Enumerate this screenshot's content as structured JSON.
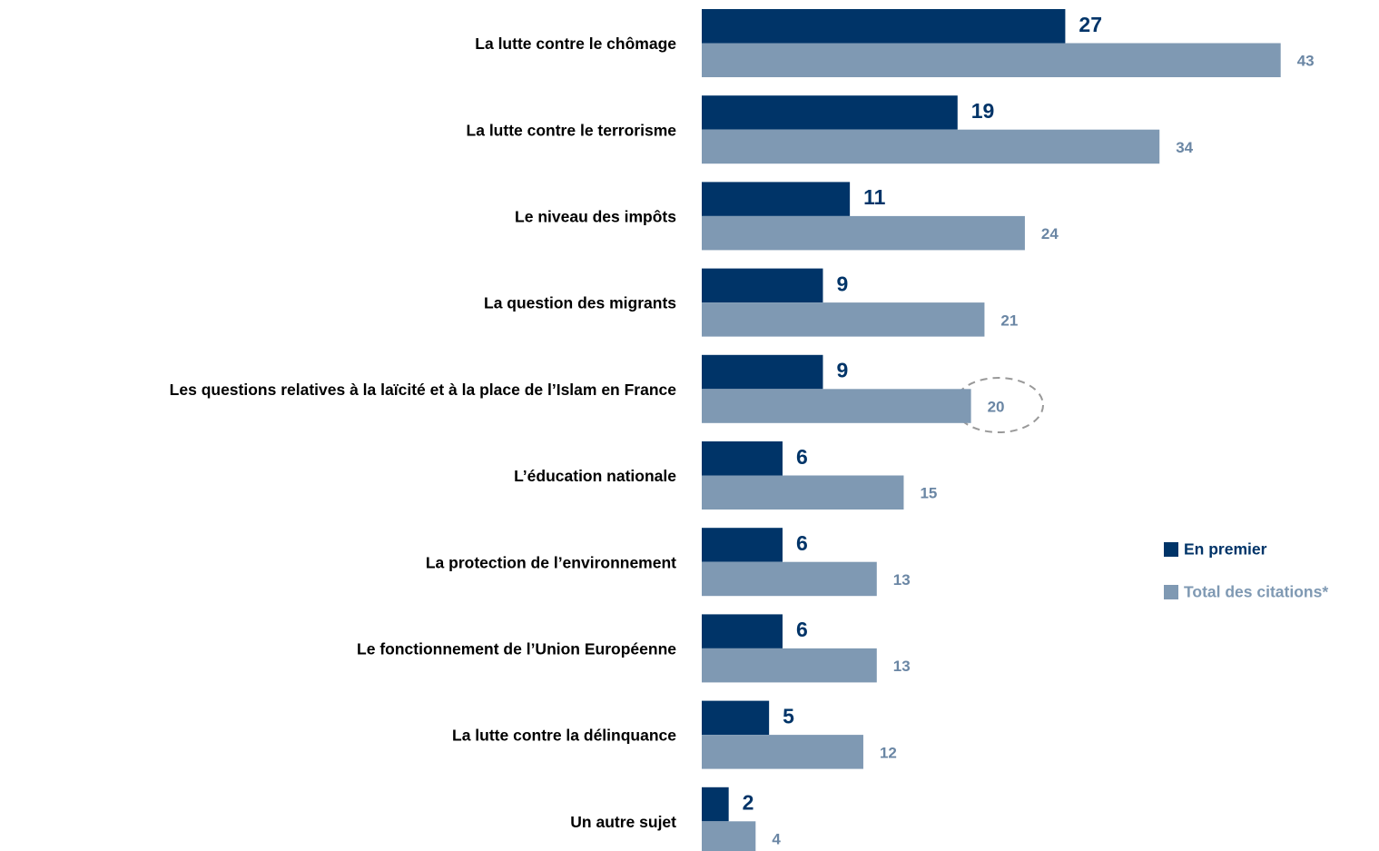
{
  "chart_data": {
    "type": "bar",
    "orientation": "horizontal",
    "categories": [
      "La lutte contre le chômage",
      "La lutte contre le terrorisme",
      "Le niveau des impôts",
      "La question des migrants",
      "Les questions relatives à la laïcité et à la place de l’Islam en France",
      "L’éducation nationale",
      "La protection de l’environnement",
      "Le fonctionnement de l’Union Européenne",
      "La lutte contre la délinquance",
      "Un autre sujet"
    ],
    "series": [
      {
        "name": "En premier",
        "color": "#003468",
        "values": [
          27,
          19,
          11,
          9,
          9,
          6,
          6,
          6,
          5,
          2
        ]
      },
      {
        "name": "Total des citations*",
        "color": "#7f99b3",
        "values": [
          43,
          34,
          24,
          21,
          20,
          15,
          13,
          13,
          12,
          4
        ]
      }
    ],
    "legend": "right"
  }
}
